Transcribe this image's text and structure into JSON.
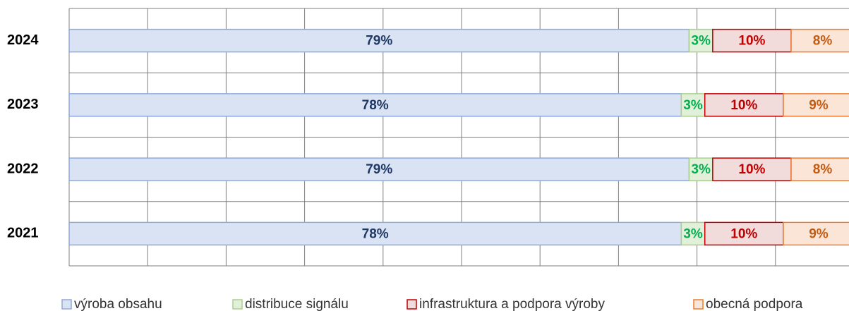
{
  "chart_data": {
    "type": "stacked_barh",
    "categories": [
      "2024",
      "2023",
      "2022",
      "2021"
    ],
    "series": [
      {
        "name": "výroba obsahu",
        "color": "#dae3f3",
        "edge_color": "#8faadc",
        "label_color": "#1f3864",
        "values": [
          79,
          78,
          79,
          78
        ],
        "value_labels": [
          "79%",
          "78%",
          "79%",
          "78%"
        ]
      },
      {
        "name": "distribuce signálu",
        "color": "#e2f0d9",
        "edge_color": "#a9d18e",
        "label_color": "#00b050",
        "values": [
          3,
          3,
          3,
          3
        ],
        "value_labels": [
          "3%",
          "3%",
          "3%",
          "3%"
        ]
      },
      {
        "name": "infrastruktura a podpora výroby",
        "color": "#f2dcdb",
        "edge_color": "#c00000",
        "label_color": "#c00000",
        "values": [
          10,
          10,
          10,
          10
        ],
        "value_labels": [
          "10%",
          "10%",
          "10%",
          "10%"
        ]
      },
      {
        "name": "obecná podpora",
        "color": "#fbe5d6",
        "edge_color": "#ed7d31",
        "label_color": "#c55a11",
        "values": [
          8,
          9,
          8,
          9
        ],
        "value_labels": [
          "8%",
          "9%",
          "8%",
          "9%"
        ]
      }
    ],
    "xlim": [
      0,
      100
    ],
    "xticks": [
      0,
      10,
      20,
      30,
      40,
      50,
      60,
      70,
      80,
      90,
      100
    ],
    "grid": true
  }
}
